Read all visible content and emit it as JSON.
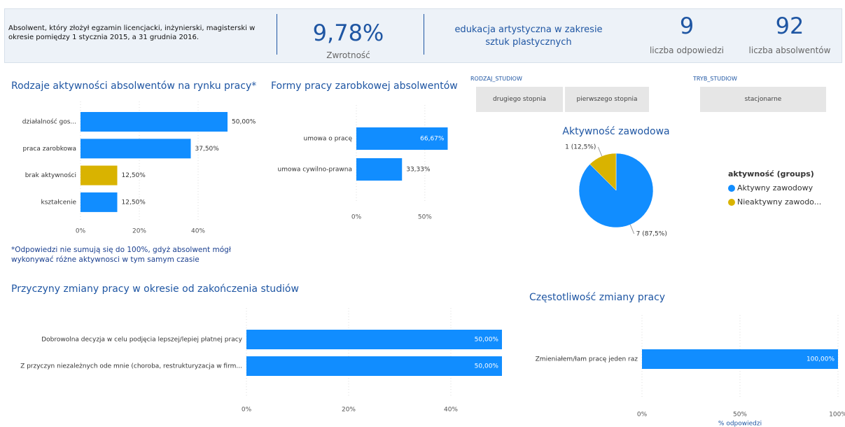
{
  "header": {
    "description": "Absolwent, który złożył egzamin licencjacki, inżynierski, magisterski w okresie pomiędzy 1  stycznia 2015, a 31 grudnia 2016.",
    "rate": "9,78%",
    "rate_label": "Zwrotność",
    "field": "edukacja artystyczna w zakresie sztuk plastycznych",
    "responses": 9,
    "responses_label": "liczba odpowiedzi",
    "graduates": 92,
    "graduates_label": "liczba absolwentów"
  },
  "filters": [
    {
      "label": "RODZAJ_STUDIOW",
      "options": [
        "drugiego stopnia",
        "pierwszego stopnia"
      ]
    },
    {
      "label": "TRYB_STUDIOW",
      "options": [
        "stacjonarne"
      ]
    }
  ],
  "chart_data": [
    {
      "type": "bar",
      "orientation": "horizontal",
      "title": "Rodzaje aktywności absolwentów na rynku pracy*",
      "categories": [
        "działalność gos...",
        "praca zarobkowa",
        "brak aktywności",
        "kształcenie"
      ],
      "values": [
        50,
        37.5,
        12.5,
        12.5
      ],
      "value_labels": [
        "50,00%",
        "37,50%",
        "12,50%",
        "12,50%"
      ],
      "colors": [
        "#118dff",
        "#118dff",
        "#d9b300",
        "#118dff"
      ],
      "xlim": [
        0,
        50
      ],
      "xticks": [
        {
          "value": 0,
          "label": "0%"
        },
        {
          "value": 20,
          "label": "20%"
        },
        {
          "value": 40,
          "label": "40%"
        }
      ],
      "grid": true,
      "note": "*Odpowiedzi nie sumują się do 100%, gdyż absolwent mógł wykonywać różne aktywnosci w tym samym czasie"
    },
    {
      "type": "bar",
      "orientation": "horizontal",
      "title": "Formy pracy zarobkowej absolwentów",
      "categories": [
        "umowa o pracę",
        "umowa cywilno-prawna"
      ],
      "values": [
        66.67,
        33.33
      ],
      "value_labels": [
        "66,67%",
        "33,33%"
      ],
      "color": "#118dff",
      "xlim": [
        0,
        70
      ],
      "xticks": [
        {
          "value": 0,
          "label": "0%"
        },
        {
          "value": 50,
          "label": "50%"
        }
      ],
      "grid": true
    },
    {
      "type": "pie",
      "title": "Aktywność zawodowa",
      "categories": [
        "Aktywny zawodowy",
        "Nieaktywny zawodo..."
      ],
      "values": [
        7,
        1
      ],
      "value_labels": [
        "7 (87,5%)",
        "1 (12,5%)"
      ],
      "colors": [
        "#118dff",
        "#d9b300"
      ],
      "legend_title": "aktywność (groups)",
      "legend": "right"
    },
    {
      "type": "bar",
      "orientation": "horizontal",
      "title": "Przyczyny zmiany pracy w okresie od zakończenia studiów",
      "categories": [
        "Dobrowolna decyzja w celu podjęcia lepszej/lepiej płatnej pracy",
        "Z przyczyn niezależnych ode mnie (choroba, restrukturyzacja w firm..."
      ],
      "values": [
        50,
        50
      ],
      "value_labels": [
        "50,00%",
        "50,00%"
      ],
      "color": "#118dff",
      "xlim": [
        0,
        50
      ],
      "xticks": [
        {
          "value": 0,
          "label": "0%"
        },
        {
          "value": 20,
          "label": "20%"
        },
        {
          "value": 40,
          "label": "40%"
        }
      ],
      "grid": true
    },
    {
      "type": "bar",
      "orientation": "horizontal",
      "title": "Częstotliwość zmiany pracy",
      "categories": [
        "Zmieniałem/łam pracę jeden raz"
      ],
      "values": [
        100
      ],
      "value_labels": [
        "100,00%"
      ],
      "color": "#118dff",
      "xlim": [
        0,
        100
      ],
      "xticks": [
        {
          "value": 0,
          "label": "0%"
        },
        {
          "value": 50,
          "label": "50%"
        },
        {
          "value": 100,
          "label": "100%"
        }
      ],
      "xlabel": "% odpowiedzi",
      "grid": true
    }
  ]
}
